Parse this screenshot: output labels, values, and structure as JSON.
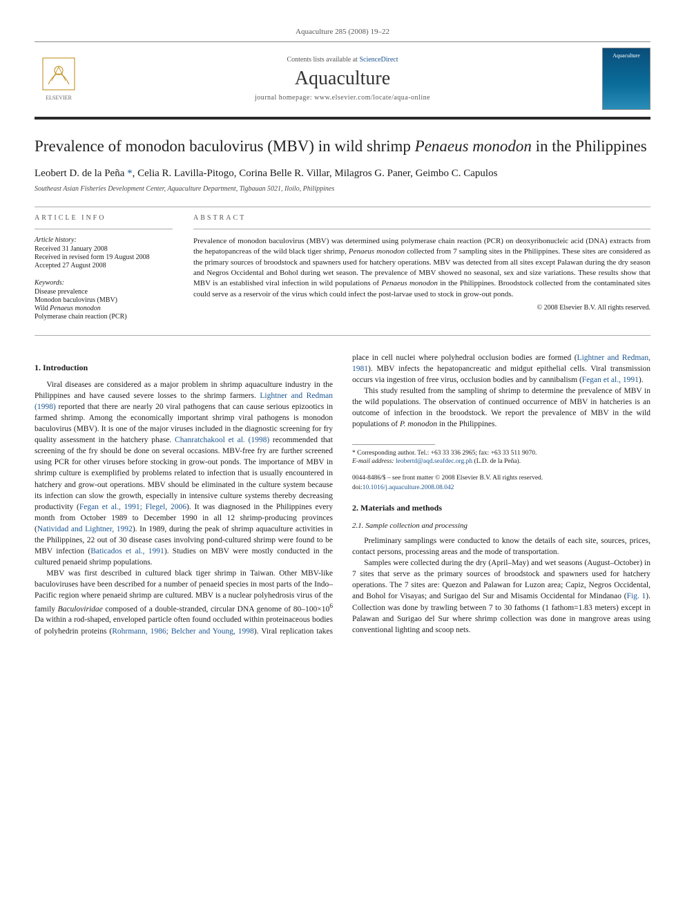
{
  "journal_ref": "Aquaculture 285 (2008) 19–22",
  "header": {
    "contents_prefix": "Contents lists available at ",
    "contents_link": "ScienceDirect",
    "journal_name": "Aquaculture",
    "homepage_prefix": "journal homepage: ",
    "homepage": "www.elsevier.com/locate/aqua-online",
    "publisher_label": "ELSEVIER",
    "cover_label": "Aquaculture"
  },
  "title_parts": {
    "pre": "Prevalence of monodon baculovirus (MBV) in wild shrimp ",
    "species": "Penaeus monodon",
    "post": " in the Philippines"
  },
  "authors_html": "Leobert D. de la Peña *, Celia R. Lavilla-Pitogo, Corina Belle R. Villar, Milagros G. Paner, Geimbo C. Capulos",
  "corresponding_link": "*",
  "affiliation": "Southeast Asian Fisheries Development Center, Aquaculture Department, Tigbauan 5021, Iloilo, Philippines",
  "article_info": {
    "heading": "ARTICLE INFO",
    "history_label": "Article history:",
    "received": "Received 31 January 2008",
    "revised": "Received in revised form 19 August 2008",
    "accepted": "Accepted 27 August 2008",
    "keywords_label": "Keywords:",
    "keywords": [
      "Disease prevalence",
      "Monodon baculovirus (MBV)",
      "Wild Penaeus monodon",
      "Polymerase chain reaction (PCR)"
    ]
  },
  "abstract": {
    "heading": "ABSTRACT",
    "text_parts": [
      {
        "t": "Prevalence of monodon baculovirus (MBV) was determined using polymerase chain reaction (PCR) on deoxyribonucleic acid (DNA) extracts from the hepatopancreas of the wild black tiger shrimp, "
      },
      {
        "t": "Penaeus monodon",
        "i": true
      },
      {
        "t": " collected from 7 sampling sites in the Philippines. These sites are considered as the primary sources of broodstock and spawners used for hatchery operations. MBV was detected from all sites except Palawan during the dry season and Negros Occidental and Bohol during wet season. The prevalence of MBV showed no seasonal, sex and size variations. These results show that MBV is an established viral infection in wild populations of "
      },
      {
        "t": "Penaeus monodon",
        "i": true
      },
      {
        "t": " in the Philippines. Broodstock collected from the contaminated sites could serve as a reservoir of the virus which could infect the post-larvae used to stock in grow-out ponds."
      }
    ],
    "copyright": "© 2008 Elsevier B.V. All rights reserved."
  },
  "sections": {
    "intro_heading": "1. Introduction",
    "intro_paragraphs": [
      [
        {
          "t": "Viral diseases are considered as a major problem in shrimp aquaculture industry in the Philippines and have caused severe losses to the shrimp farmers. "
        },
        {
          "t": "Lightner and Redman (1998)",
          "r": true
        },
        {
          "t": " reported that there are nearly 20 viral pathogens that can cause serious epizootics in farmed shrimp. Among the economically important shrimp viral pathogens is monodon baculovirus (MBV). It is one of the major viruses included in the diagnostic screening for fry quality assessment in the hatchery phase. "
        },
        {
          "t": "Chanratchakool et al. (1998)",
          "r": true
        },
        {
          "t": " recommended that screening of the fry should be done on several occasions. MBV-free fry are further screened using PCR for other viruses before stocking in grow-out ponds. The importance of MBV in shrimp culture is exemplified by problems related to infection that is usually encountered in hatchery and grow-out operations. MBV should be eliminated in the culture system because its infection can slow the growth, especially in intensive culture systems thereby decreasing productivity ("
        },
        {
          "t": "Fegan et al., 1991; Flegel, 2006",
          "r": true
        },
        {
          "t": "). It was diagnosed in the Philippines every month from October 1989 to December 1990 in all 12 shrimp-producing provinces ("
        },
        {
          "t": "Natividad and Lightner, 1992",
          "r": true
        },
        {
          "t": "). In 1989, during the peak of shrimp aquaculture activities in the Philippines, 22 out of 30 disease cases involving pond-cultured shrimp were found to be MBV infection ("
        },
        {
          "t": "Baticados et al., 1991",
          "r": true
        },
        {
          "t": "). Studies on MBV were mostly conducted in the cultured penaeid shrimp populations."
        }
      ],
      [
        {
          "t": "MBV was first described in cultured black tiger shrimp in Taiwan. Other MBV-like baculoviruses have been described for a number of penaeid species in most parts of the Indo–Pacific region where penaeid shrimp are cultured. MBV is a nuclear polyhedrosis virus of the family "
        },
        {
          "t": "Baculoviridae",
          "i": true
        },
        {
          "t": " composed of a double-stranded, circular DNA genome of 80–100×10"
        },
        {
          "t": "6",
          "sup": true
        },
        {
          "t": " Da within a rod-shaped, enveloped particle often found occluded within proteinaceous bodies of polyhedrin proteins ("
        },
        {
          "t": "Rohrmann, 1986; Belcher and Young, 1998",
          "r": true
        },
        {
          "t": "). Viral replication takes place in cell nuclei where polyhedral occlusion bodies are formed ("
        },
        {
          "t": "Lightner and Redman, 1981",
          "r": true
        },
        {
          "t": "). MBV infects the hepatopancreatic and midgut epithelial cells. Viral transmission occurs via ingestion of free virus, occlusion bodies and by cannibalism ("
        },
        {
          "t": "Fegan et al., 1991",
          "r": true
        },
        {
          "t": ")."
        }
      ],
      [
        {
          "t": "This study resulted from the sampling of shrimp to determine the prevalence of MBV in the wild populations. The observation of continued occurrence of MBV in hatcheries is an outcome of infection in the broodstock. We report the prevalence of MBV in the wild populations of "
        },
        {
          "t": "P. monodon",
          "i": true
        },
        {
          "t": " in the Philippines."
        }
      ]
    ],
    "methods_heading": "2. Materials and methods",
    "methods_sub_heading": "2.1. Sample collection and processing",
    "methods_paragraphs": [
      [
        {
          "t": "Preliminary samplings were conducted to know the details of each site, sources, prices, contact persons, processing areas and the mode of transportation."
        }
      ],
      [
        {
          "t": "Samples were collected during the dry (April–May) and wet seasons (August–October) in 7 sites that serve as the primary sources of broodstock and spawners used for hatchery operations. The 7 sites are: Quezon and Palawan for Luzon area; Capiz, Negros Occidental, and Bohol for Visayas; and Surigao del Sur and Misamis Occidental for Mindanao ("
        },
        {
          "t": "Fig. 1",
          "r": true
        },
        {
          "t": "). Collection was done by trawling between 7 to 30 fathoms (1 fathom=1.83 meters) except in Palawan and Surigao del Sur where shrimp collection was done in mangrove areas using conventional lighting and scoop nets."
        }
      ]
    ]
  },
  "footnote": {
    "marker": "*",
    "text": "Corresponding author. Tel.: +63 33 336 2965; fax: +63 33 511 9070.",
    "email_label": "E-mail address:",
    "email": "leobertd@aqd.seafdec.org.ph",
    "email_attrib": "(L.D. de la Peña)."
  },
  "bottom": {
    "issn_line": "0044-8486/$ – see front matter © 2008 Elsevier B.V. All rights reserved.",
    "doi_label": "doi:",
    "doi": "10.1016/j.aquaculture.2008.08.042"
  },
  "colors": {
    "link": "#1a5490",
    "rule_dark": "#2a2a2a",
    "text": "#1a1a1a",
    "muted": "#555"
  }
}
